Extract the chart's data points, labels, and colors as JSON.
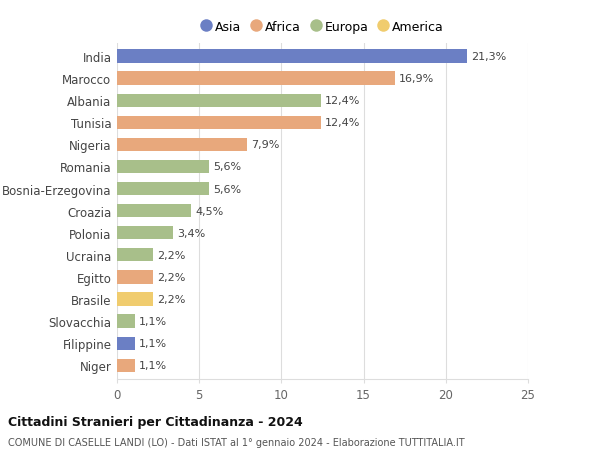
{
  "countries": [
    "India",
    "Marocco",
    "Albania",
    "Tunisia",
    "Nigeria",
    "Romania",
    "Bosnia-Erzegovina",
    "Croazia",
    "Polonia",
    "Ucraina",
    "Egitto",
    "Brasile",
    "Slovacchia",
    "Filippine",
    "Niger"
  ],
  "values": [
    21.3,
    16.9,
    12.4,
    12.4,
    7.9,
    5.6,
    5.6,
    4.5,
    3.4,
    2.2,
    2.2,
    2.2,
    1.1,
    1.1,
    1.1
  ],
  "labels": [
    "21,3%",
    "16,9%",
    "12,4%",
    "12,4%",
    "7,9%",
    "5,6%",
    "5,6%",
    "4,5%",
    "3,4%",
    "2,2%",
    "2,2%",
    "2,2%",
    "1,1%",
    "1,1%",
    "1,1%"
  ],
  "continents": [
    "Asia",
    "Africa",
    "Europa",
    "Africa",
    "Africa",
    "Europa",
    "Europa",
    "Europa",
    "Europa",
    "Europa",
    "Africa",
    "America",
    "Europa",
    "Asia",
    "Africa"
  ],
  "continent_colors": {
    "Asia": "#6b7fc4",
    "Africa": "#e8a87c",
    "Europa": "#a8bf8a",
    "America": "#f0cc6e"
  },
  "legend_order": [
    "Asia",
    "Africa",
    "Europa",
    "America"
  ],
  "title": "Cittadini Stranieri per Cittadinanza - 2024",
  "subtitle": "COMUNE DI CASELLE LANDI (LO) - Dati ISTAT al 1° gennaio 2024 - Elaborazione TUTTITALIA.IT",
  "xlim": [
    0,
    25
  ],
  "xticks": [
    0,
    5,
    10,
    15,
    20,
    25
  ],
  "background_color": "#ffffff",
  "bar_height": 0.6,
  "grid_color": "#dddddd",
  "label_fontsize": 8.0,
  "ytick_fontsize": 8.5,
  "xtick_fontsize": 8.5
}
